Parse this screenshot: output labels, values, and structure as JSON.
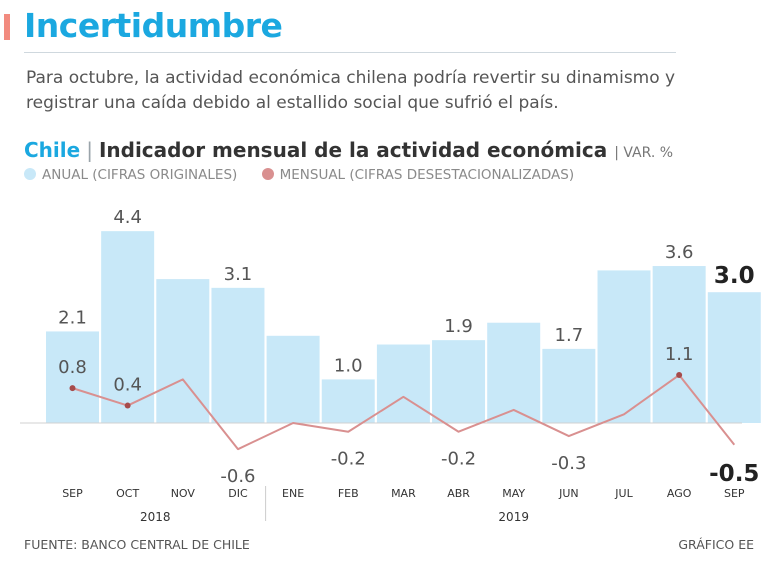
{
  "header": {
    "title": "Incertidumbre",
    "subtitle": "Para octubre, la actividad económica chilena podría revertir su dinamismo y registrar una caída debido al estallido social que sufrió el país."
  },
  "chart_header": {
    "country": "Chile",
    "separator": "|",
    "indicator": "Indicador mensual de la actividad económica",
    "unit": "| VAR. %"
  },
  "legend": {
    "annual": "ANUAL (CIFRAS ORIGINALES)",
    "monthly": "MENSUAL (CIFRAS DESESTACIONALIZADAS)"
  },
  "colors": {
    "title": "#1ba8e0",
    "bar": "#c8e8f8",
    "line": "#d99090",
    "marker": "#a64b4b",
    "accent": "#f28b7f"
  },
  "chart_data": {
    "type": "bar",
    "title": "Indicador mensual de la actividad económica",
    "ylabel": "VAR. %",
    "categories": [
      "SEP",
      "OCT",
      "NOV",
      "DIC",
      "ENE",
      "FEB",
      "MAR",
      "ABR",
      "MAY",
      "JUN",
      "JUL",
      "AGO",
      "SEP"
    ],
    "year_groups": [
      {
        "label": "2018",
        "from": 0,
        "to": 3
      },
      {
        "label": "2019",
        "from": 4,
        "to": 12
      }
    ],
    "series": [
      {
        "name": "ANUAL (CIFRAS ORIGINALES)",
        "type": "bar",
        "values": [
          2.1,
          4.4,
          3.3,
          3.1,
          2.0,
          1.0,
          1.8,
          1.9,
          2.3,
          1.7,
          3.5,
          3.6,
          3.0
        ],
        "labels": [
          "2.1",
          "4.4",
          "",
          "3.1",
          "",
          "1.0",
          "",
          "1.9",
          "",
          "1.7",
          "",
          "3.6",
          "3.0"
        ],
        "highlight_last": true
      },
      {
        "name": "MENSUAL (CIFRAS DESESTACIONALIZADAS)",
        "type": "line",
        "values": [
          0.8,
          0.4,
          1.0,
          -0.6,
          0.0,
          -0.2,
          0.6,
          -0.2,
          0.3,
          -0.3,
          0.2,
          1.1,
          -0.5
        ],
        "labels": [
          "0.8",
          "0.4",
          "",
          "-0.6",
          "",
          "-0.2",
          "",
          "-0.2",
          "",
          "-0.3",
          "",
          "1.1",
          "-0.5"
        ],
        "markers_at": [
          0,
          1,
          11
        ]
      }
    ],
    "ylim": [
      -1.2,
      5.2
    ]
  },
  "footer": {
    "source": "FUENTE: BANCO CENTRAL DE CHILE",
    "credit": "GRÁFICO EE"
  }
}
